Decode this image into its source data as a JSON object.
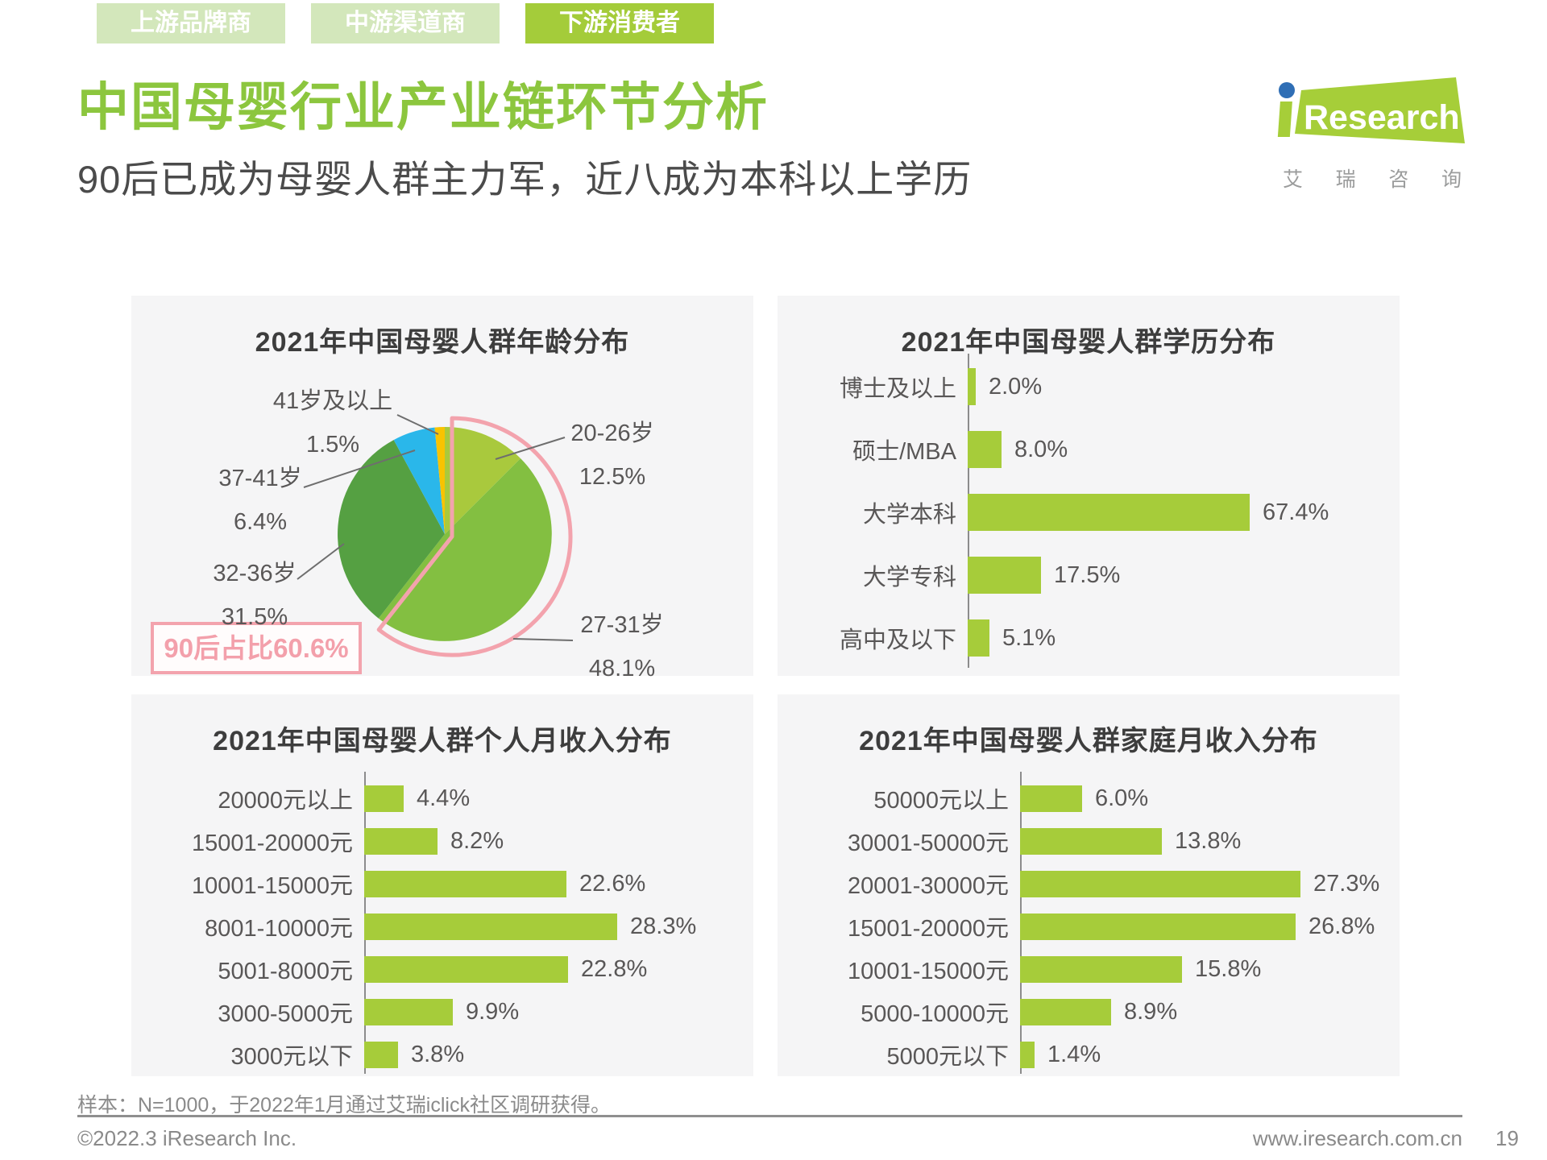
{
  "tabs": [
    {
      "label": "上游品牌商",
      "active": false
    },
    {
      "label": "中游渠道商",
      "active": false
    },
    {
      "label": "下游消费者",
      "active": true
    }
  ],
  "header": {
    "title": "中国母婴行业产业链环节分析",
    "subtitle": "90后已成为母婴人群主力军，近八成为本科以上学历"
  },
  "logo": {
    "brand": "Research",
    "cn": [
      "艾",
      "瑞",
      "咨",
      "询"
    ]
  },
  "colors": {
    "brand_green": "#8cc63e",
    "tab_active": "#a4cc3a",
    "tab_inactive": "#d3e7bb",
    "bar_green": "#a6cc3a",
    "highlight_pink": "#f3a3ad",
    "panel_bg": "#f5f5f6"
  },
  "chart_data": [
    {
      "type": "pie",
      "title": "2021年中国母婴人群年龄分布",
      "labels": [
        "20-26岁",
        "27-31岁",
        "32-36岁",
        "37-41岁",
        "41岁及以上"
      ],
      "values": [
        12.5,
        48.1,
        31.5,
        6.4,
        1.5
      ],
      "colors": [
        "#a9c93d",
        "#83bf41",
        "#55a042",
        "#2ab7ea",
        "#f8c301"
      ],
      "start_angle_deg": 0,
      "direction": "clockwise",
      "legend_position": "callout-labels",
      "highlight": {
        "label": "90后占比60.6%",
        "value": 60.6,
        "color": "#f3a3ad"
      }
    },
    {
      "type": "bar",
      "title": "2021年中国母婴人群学历分布",
      "orientation": "horizontal",
      "categories": [
        "博士及以上",
        "硕士/MBA",
        "大学本科",
        "大学专科",
        "高中及以下"
      ],
      "values": [
        2.0,
        8.0,
        67.4,
        17.5,
        5.1
      ],
      "unit": "%",
      "xlim": [
        0,
        100
      ],
      "grid": false,
      "bar_color": "#a6cc3a"
    },
    {
      "type": "bar",
      "title": "2021年中国母婴人群个人月收入分布",
      "orientation": "horizontal",
      "categories": [
        "20000元以上",
        "15001-20000元",
        "10001-15000元",
        "8001-10000元",
        "5001-8000元",
        "3000-5000元",
        "3000元以下"
      ],
      "values": [
        4.4,
        8.2,
        22.6,
        28.3,
        22.8,
        9.9,
        3.8
      ],
      "unit": "%",
      "xlim": [
        0,
        40
      ],
      "grid": false,
      "bar_color": "#a6cc3a"
    },
    {
      "type": "bar",
      "title": "2021年中国母婴人群家庭月收入分布",
      "orientation": "horizontal",
      "categories": [
        "50000元以上",
        "30001-50000元",
        "20001-30000元",
        "15001-20000元",
        "10001-15000元",
        "5000-10000元",
        "5000元以下"
      ],
      "values": [
        6.0,
        13.8,
        27.3,
        26.8,
        15.8,
        8.9,
        1.4
      ],
      "unit": "%",
      "xlim": [
        0,
        35
      ],
      "grid": false,
      "bar_color": "#a6cc3a"
    }
  ],
  "footnote": "样本：N=1000，于2022年1月通过艾瑞iclick社区调研获得。",
  "footer": {
    "copyright": "©2022.3 iResearch Inc.",
    "website": "www.iresearch.com.cn",
    "page_number": "19"
  }
}
